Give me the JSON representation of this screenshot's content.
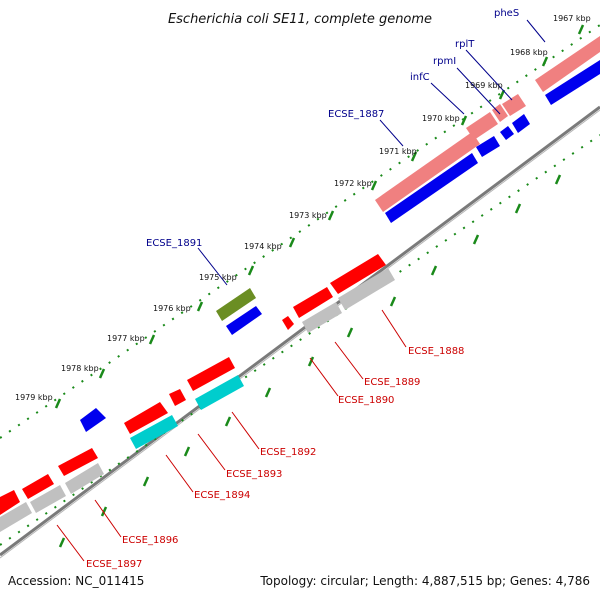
{
  "title": "Escherichia coli SE11, complete genome",
  "footer": {
    "accession": "Accession: NC_011415",
    "topology": "Topology: circular; Length: 4,887,515 bp; Genes: 4,786"
  },
  "colors": {
    "cds_plus_outer": "#f08080",
    "cds_plus": "#0000ee",
    "rna": "#6b8e23",
    "cds_minus": "#ff0000",
    "cds_minus_inner": "#c0c0c0",
    "trna": "#00cdcd",
    "backbone": "#808080",
    "ticks": "#1a8a1a",
    "label_blue": "#00008b",
    "label_red": "#cc0000"
  },
  "ticks": [
    "1967 kbp",
    "1968 kbp",
    "1969 kbp",
    "1970 kbp",
    "1971 kbp",
    "1972 kbp",
    "1973 kbp",
    "1974 kbp",
    "1975 kbp",
    "1976 kbp",
    "1977 kbp",
    "1978 kbp",
    "1979 kbp"
  ],
  "gene_labels_top": [
    "pheS",
    "rplT",
    "rpmI",
    "infC",
    "ECSE_1887",
    "ECSE_1891"
  ],
  "gene_labels_bottom": [
    "ECSE_1888",
    "ECSE_1889",
    "ECSE_1890",
    "ECSE_1892",
    "ECSE_1893",
    "ECSE_1894",
    "ECSE_1896",
    "ECSE_1897"
  ]
}
